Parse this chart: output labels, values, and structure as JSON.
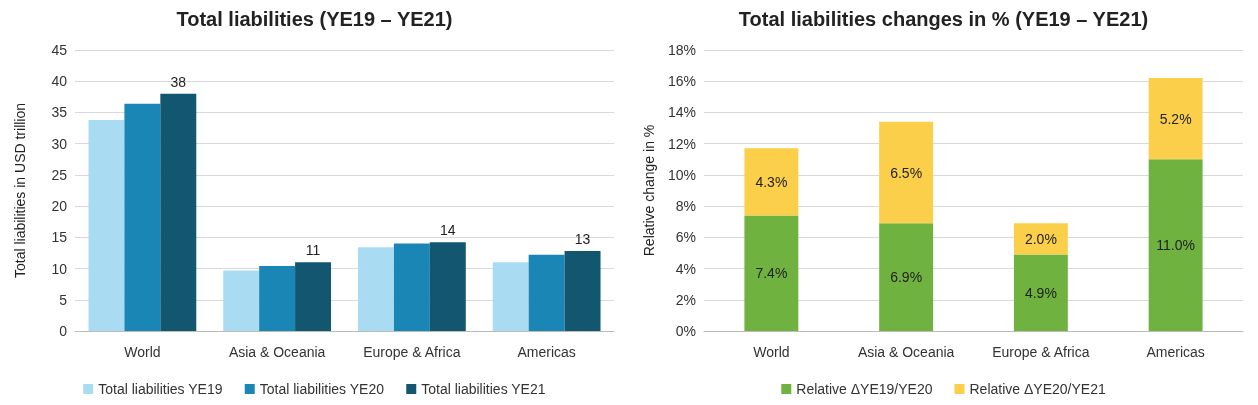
{
  "chart_data": [
    {
      "type": "bar",
      "title": "Total liabilities (YE19 – YE21)",
      "ylabel": "Total liabilities in USD trillion",
      "categories": [
        "World",
        "Asia & Oceania",
        "Europe & Africa",
        "Americas"
      ],
      "series": [
        {
          "name": "Total liabilities YE19",
          "color": "#a9dcf3",
          "values": [
            33.8,
            9.7,
            13.4,
            11.0
          ]
        },
        {
          "name": "Total liabilities YE20",
          "color": "#1a86b5",
          "values": [
            36.4,
            10.4,
            14.0,
            12.2
          ]
        },
        {
          "name": "Total liabilities YE21",
          "color": "#125670",
          "values": [
            38,
            11,
            14.2,
            12.8
          ],
          "value_labels": [
            "38",
            "11",
            "14",
            "13"
          ]
        }
      ],
      "ylim": [
        0,
        45
      ],
      "yticks": [
        0,
        5,
        10,
        15,
        20,
        25,
        30,
        35,
        40,
        45
      ],
      "grid": "y",
      "legend": "bottom"
    },
    {
      "type": "bar",
      "stacked": true,
      "title": "Total liabilities changes in % (YE19 – YE21)",
      "ylabel": "Relative change in %",
      "categories": [
        "World",
        "Asia & Oceania",
        "Europe & Africa",
        "Americas"
      ],
      "series": [
        {
          "name": "Relative ΔYE19/YE20",
          "color": "#70b23f",
          "values": [
            7.4,
            6.9,
            4.9,
            11.0
          ],
          "value_labels": [
            "7.4%",
            "6.9%",
            "4.9%",
            "11.0%"
          ]
        },
        {
          "name": "Relative ΔYE20/YE21",
          "color": "#fbcf4a",
          "values": [
            4.3,
            6.5,
            2.0,
            5.2
          ],
          "value_labels": [
            "4.3%",
            "6.5%",
            "2.0%",
            "5.2%"
          ]
        }
      ],
      "ylim": [
        0,
        18
      ],
      "yticks": [
        {
          "value": 0,
          "label": "0%"
        },
        {
          "value": 2,
          "label": "2%"
        },
        {
          "value": 4,
          "label": "4%"
        },
        {
          "value": 6,
          "label": "6%"
        },
        {
          "value": 8,
          "label": "8%"
        },
        {
          "value": 10,
          "label": "10%"
        },
        {
          "value": 12,
          "label": "12%"
        },
        {
          "value": 14,
          "label": "14%"
        },
        {
          "value": 16,
          "label": "16%"
        },
        {
          "value": 18,
          "label": "18%"
        }
      ],
      "grid": "y",
      "legend": "bottom"
    }
  ]
}
